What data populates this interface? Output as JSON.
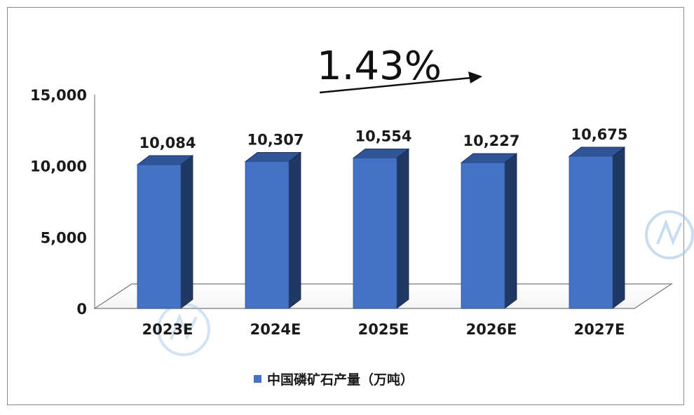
{
  "annotation": {
    "growth_rate": "1.43%"
  },
  "colors": {
    "bar_front": "#4472C4",
    "bar_side": "#1F3864",
    "bar_top": "#2F5597",
    "floor": "#ffffff",
    "watermark": "#9DC3E6"
  },
  "chart_data": {
    "type": "bar",
    "categories": [
      "2023E",
      "2024E",
      "2025E",
      "2026E",
      "2027E"
    ],
    "series": [
      {
        "name": "中国磷矿石产量（万吨）",
        "values": [
          10084,
          10307,
          10554,
          10227,
          10675
        ]
      }
    ],
    "data_labels": [
      "10,084",
      "10,307",
      "10,554",
      "10,227",
      "10,675"
    ],
    "y_ticks": [
      {
        "value": 0,
        "label": "0"
      },
      {
        "value": 5000,
        "label": "5,000"
      },
      {
        "value": 10000,
        "label": "10,000"
      },
      {
        "value": 15000,
        "label": "15,000"
      }
    ],
    "ylim": [
      0,
      15000
    ],
    "title": "",
    "xlabel": "",
    "ylabel": "",
    "legend_position": "bottom",
    "grid": false,
    "style": "3d-column"
  }
}
